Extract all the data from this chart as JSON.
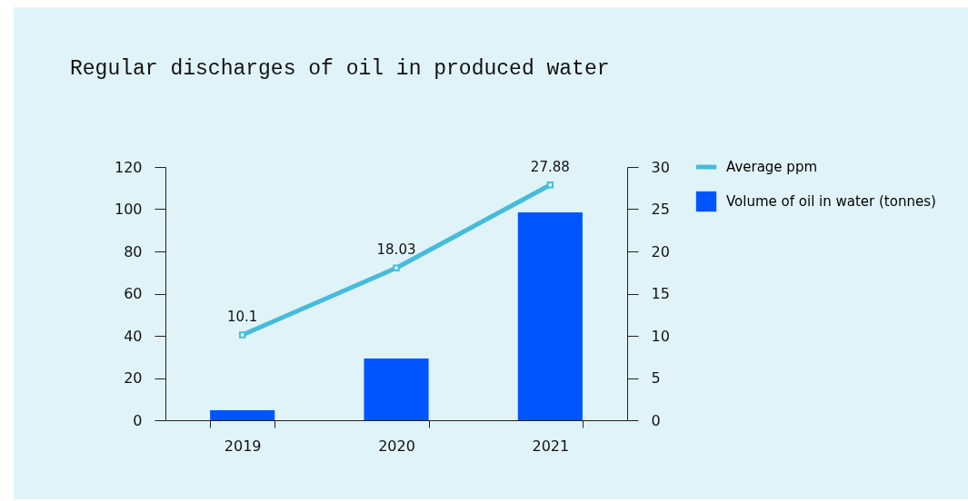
{
  "chart_data": {
    "type": "bar",
    "title": "Regular discharges of oil in produced water",
    "categories": [
      "2019",
      "2020",
      "2021"
    ],
    "series": [
      {
        "name": "Average ppm",
        "type": "line",
        "axis": "y2",
        "color": "#45bcd9",
        "values": [
          10.1,
          18.03,
          27.88
        ],
        "value_labels": [
          "10.1",
          "18.03",
          "27.88"
        ],
        "marker": "square"
      },
      {
        "name": "Volume of oil in water (tonnes)",
        "color": "#0055ff",
        "values": [
          4.7,
          29.2,
          98.5
        ]
      }
    ],
    "ylim": [
      0,
      120
    ],
    "yticks": [
      0,
      20,
      40,
      60,
      80,
      100,
      120
    ],
    "y2lim": [
      0,
      30
    ],
    "y2ticks": [
      0,
      5,
      10,
      15,
      20,
      25,
      30
    ],
    "grid": false,
    "legend": "top right"
  }
}
